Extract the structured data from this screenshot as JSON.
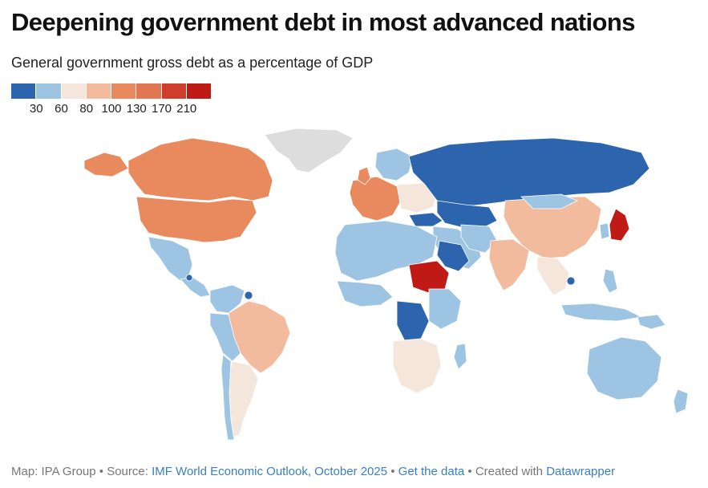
{
  "title": "Deepening government debt in most advanced nations",
  "subtitle": "General government gross debt as a percentage of GDP",
  "legend": {
    "colors": [
      "#2c64ae",
      "#9dc4e2",
      "#f5e6dc",
      "#f2bb9d",
      "#e88a5e",
      "#e07752",
      "#cf3d2d",
      "#c01a17"
    ],
    "ticks": [
      "30",
      "60",
      "80",
      "100",
      "130",
      "170",
      "210"
    ]
  },
  "colors": {
    "no_data": "#dddddd",
    "very_low": "#2c64ae",
    "low": "#9dc4e2",
    "mid": "#f5e6dc",
    "mid_high": "#f2bb9d",
    "high": "#e88a5e",
    "very_high": "#c01a17"
  },
  "footer": {
    "prefix": "Map: IPA Group • Source: ",
    "source_link": "IMF World Economic Outlook, October 2025",
    "sep1": " • ",
    "data_link": "Get the data",
    "sep2": " • Created with ",
    "tool_link": "Datawrapper"
  }
}
